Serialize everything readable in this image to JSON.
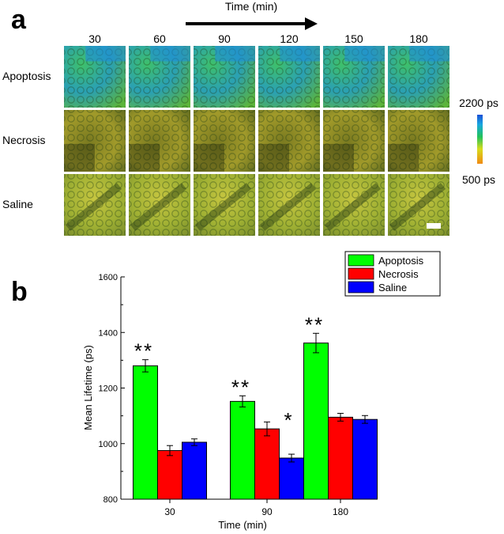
{
  "panel_a": {
    "label": "a",
    "time_label": "Time (min)",
    "timepoints": [
      "30",
      "60",
      "90",
      "120",
      "150",
      "180"
    ],
    "rows": [
      "Apoptosis",
      "Necrosis",
      "Saline"
    ],
    "colorbar": {
      "max_label": "2200 ps",
      "min_label": "500 ps"
    }
  },
  "panel_b": {
    "label": "b"
  },
  "chart_data": {
    "type": "bar",
    "categories": [
      "30",
      "90",
      "180"
    ],
    "series": [
      {
        "name": "Apoptosis",
        "values": [
          1280,
          1152,
          1362
        ],
        "errors": [
          22,
          20,
          35
        ],
        "color": "#00ff00",
        "significance": [
          "**",
          "**",
          "**"
        ]
      },
      {
        "name": "Necrosis",
        "values": [
          975,
          1053,
          1095
        ],
        "errors": [
          18,
          25,
          14
        ],
        "color": "#ff0000",
        "significance": [
          "",
          "*",
          ""
        ]
      },
      {
        "name": "Saline",
        "values": [
          1005,
          948,
          1087
        ],
        "errors": [
          12,
          14,
          14
        ],
        "color": "#0000ff",
        "significance": [
          "",
          "*",
          ""
        ]
      }
    ],
    "xlabel": "Time (min)",
    "ylabel": "Mean Lifetime (ps)",
    "ylim": [
      800,
      1600
    ],
    "yticks": [
      800,
      1000,
      1200,
      1400,
      1600
    ],
    "legend_position": "top-right"
  }
}
